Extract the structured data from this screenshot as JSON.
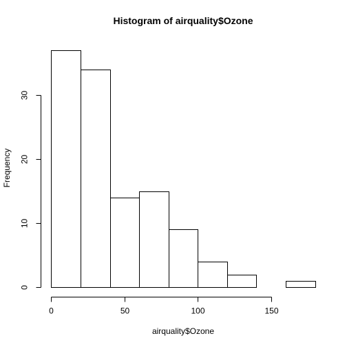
{
  "chart_data": {
    "type": "bar",
    "title": "Histogram of airquality$Ozone",
    "xlabel": "airquality$Ozone",
    "ylabel": "Frequency",
    "bin_edges": [
      0,
      20,
      40,
      60,
      80,
      100,
      120,
      140,
      160,
      180
    ],
    "values": [
      37,
      34,
      14,
      15,
      9,
      4,
      2,
      0,
      1
    ],
    "xlim": [
      0,
      180
    ],
    "ylim": [
      0,
      37
    ],
    "x_ticks": [
      0,
      50,
      100,
      150
    ],
    "x_tick_labels": [
      "0",
      "50",
      "100",
      "150"
    ],
    "y_ticks": [
      0,
      10,
      20,
      30
    ],
    "y_tick_labels": [
      "0",
      "10",
      "20",
      "30"
    ],
    "bar_fill": "#ffffff",
    "bar_stroke": "#000000",
    "grid": false,
    "legend": "none"
  }
}
